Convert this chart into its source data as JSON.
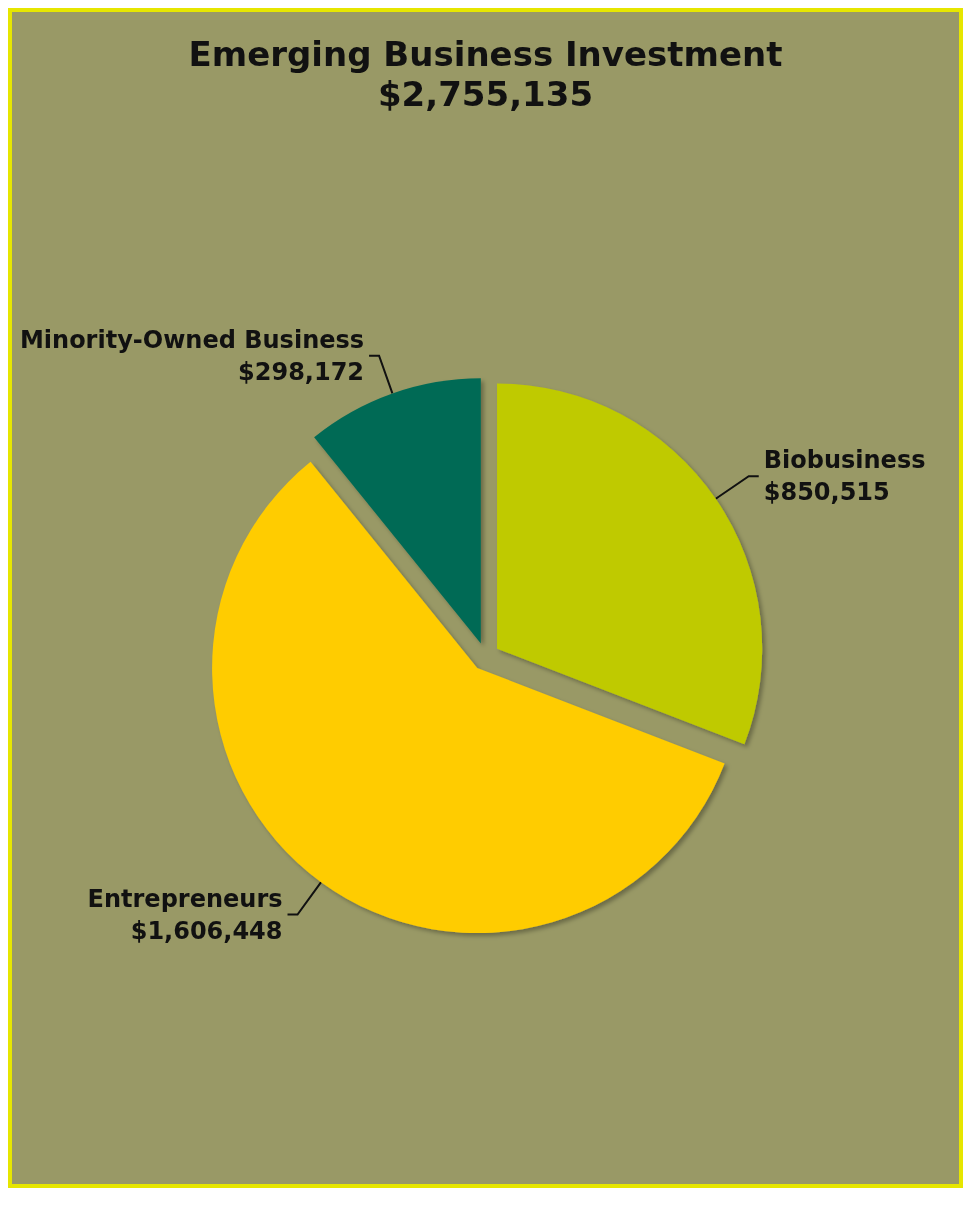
{
  "chart_data": {
    "type": "pie",
    "title": "Emerging Business Investment",
    "subtitle": "$2,755,135",
    "categories": [
      "Biobusiness",
      "Entrepreneurs",
      "Minority-Owned Business"
    ],
    "values": [
      850515,
      1606448,
      298172
    ],
    "value_labels": [
      "$850,515",
      "$1,606,448",
      "$298,172"
    ],
    "colors": [
      "#bfca00",
      "#ffcc00",
      "#006b55"
    ],
    "legend": false
  }
}
